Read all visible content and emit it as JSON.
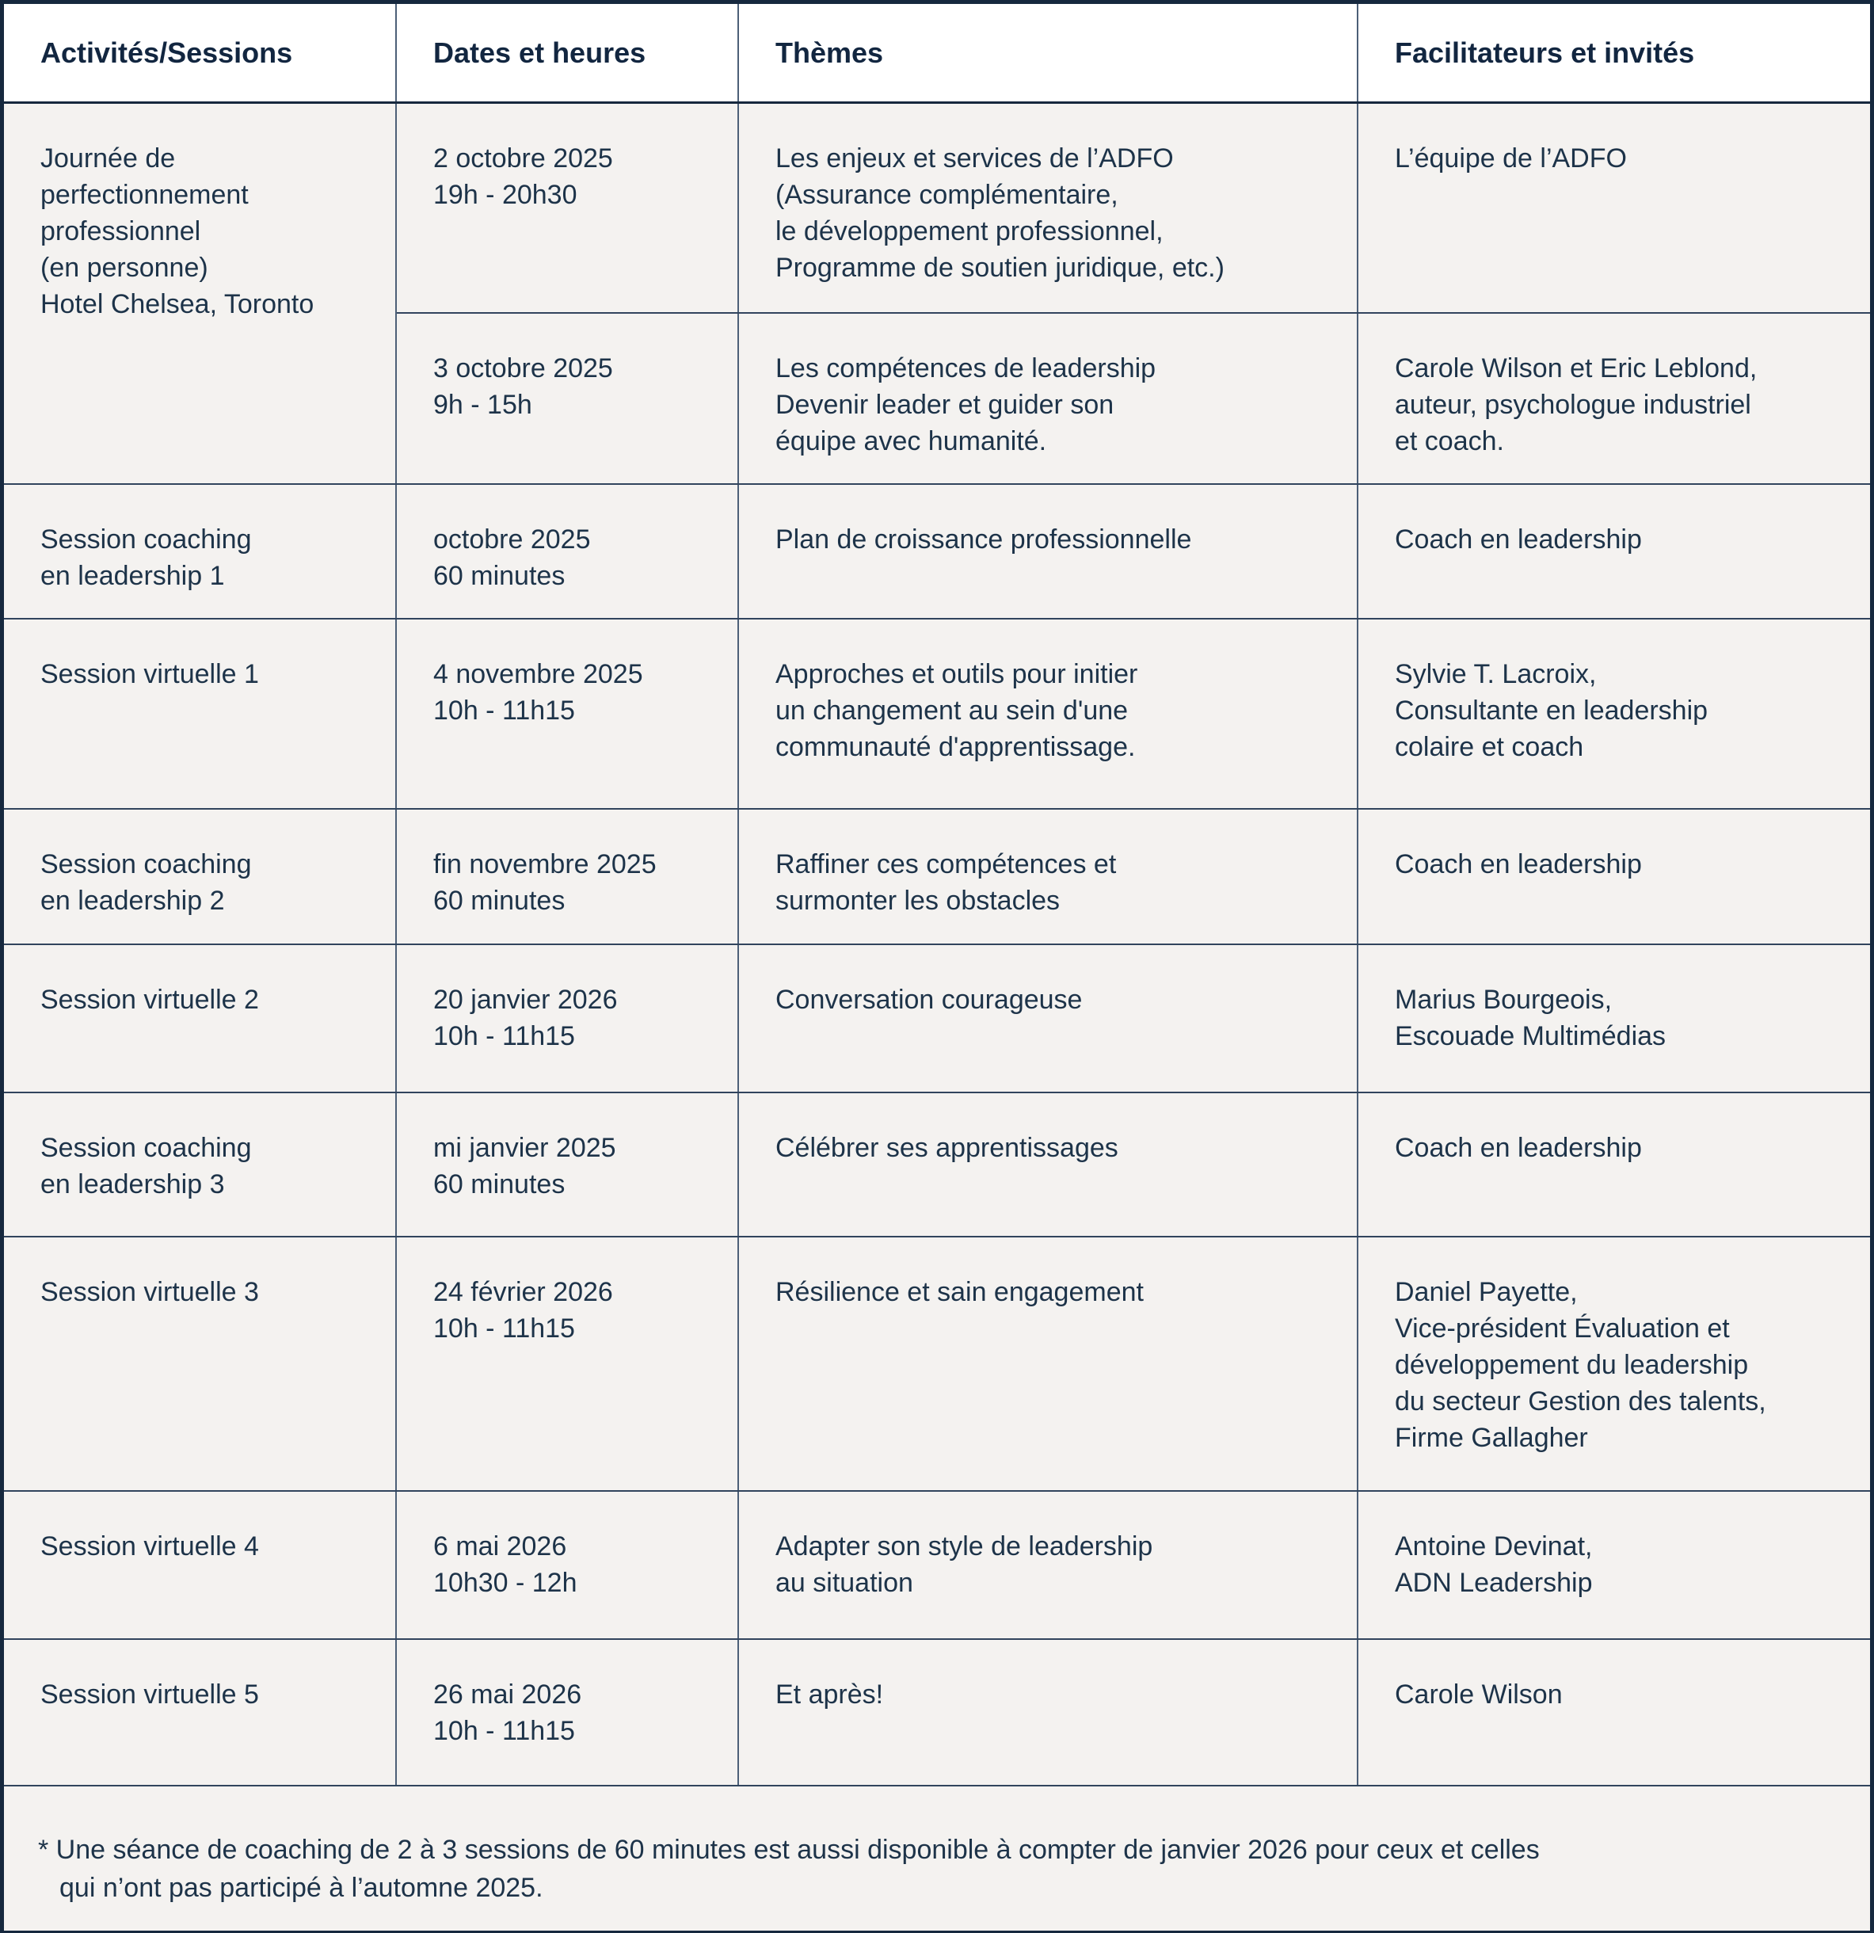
{
  "table": {
    "columns": [
      "Activités/Sessions",
      "Dates et heures",
      "Thèmes",
      "Facilitateurs et invités"
    ],
    "rows": [
      {
        "activity": "Journée de\nperfectionnement\nprofessionnel\n(en personne)\nHotel Chelsea, Toronto",
        "date": "2 octobre 2025\n19h - 20h30",
        "theme": "Les enjeux et services de l’ADFO\n(Assurance complémentaire,\nle développement professionnel,\nProgramme de soutien juridique, etc.)",
        "facilitator": "L’équipe de l’ADFO"
      },
      {
        "date": "3 octobre 2025\n9h - 15h",
        "theme": "Les compétences de leadership\nDevenir leader et guider son\néquipe avec humanité.",
        "facilitator": "Carole Wilson et Eric Leblond,\nauteur, psychologue industriel\net coach."
      },
      {
        "activity": "Session coaching\nen leadership 1",
        "date": "octobre 2025\n60 minutes",
        "theme": "Plan de croissance professionnelle",
        "facilitator": "Coach en leadership"
      },
      {
        "activity": "Session virtuelle 1",
        "date": "4 novembre 2025\n10h - 11h15",
        "theme": "Approches et outils pour initier\nun changement au sein d'une\ncommunauté d'apprentissage.",
        "facilitator": "Sylvie T. Lacroix,\nConsultante en leadership\ncolaire et coach"
      },
      {
        "activity": "Session coaching\nen leadership 2",
        "date": "fin novembre 2025\n60 minutes",
        "theme": "Raffiner ces compétences et\nsurmonter les obstacles",
        "facilitator": "Coach en leadership"
      },
      {
        "activity": "Session virtuelle 2",
        "date": "20 janvier 2026\n10h - 11h15",
        "theme": "Conversation courageuse",
        "facilitator": "Marius Bourgeois,\nEscouade Multimédias"
      },
      {
        "activity": "Session coaching\nen leadership 3",
        "date": "mi janvier 2025\n60 minutes",
        "theme": "Célébrer ses apprentissages",
        "facilitator": "Coach en leadership"
      },
      {
        "activity": "Session virtuelle 3",
        "date": "24 février 2026\n10h - 11h15",
        "theme": "Résilience et sain engagement",
        "facilitator": "Daniel Payette,\nVice-président Évaluation et\ndéveloppement du leadership\ndu secteur Gestion des talents,\nFirme Gallagher"
      },
      {
        "activity": "Session virtuelle 4",
        "date": "6 mai 2026\n10h30 - 12h",
        "theme": "Adapter son style de leadership\nau situation",
        "facilitator": "Antoine Devinat,\nADN Leadership"
      },
      {
        "activity": "Session virtuelle 5",
        "date": "26 mai 2026\n10h - 11h15",
        "theme": "Et après!",
        "facilitator": "Carole Wilson"
      }
    ]
  },
  "footnote": {
    "text": "* Une séance de coaching de 2 à 3 sessions de 60 minutes est aussi disponible à compter de janvier 2026 pour ceux et celles\nqui n’ont pas participé à l’automne 2025."
  }
}
